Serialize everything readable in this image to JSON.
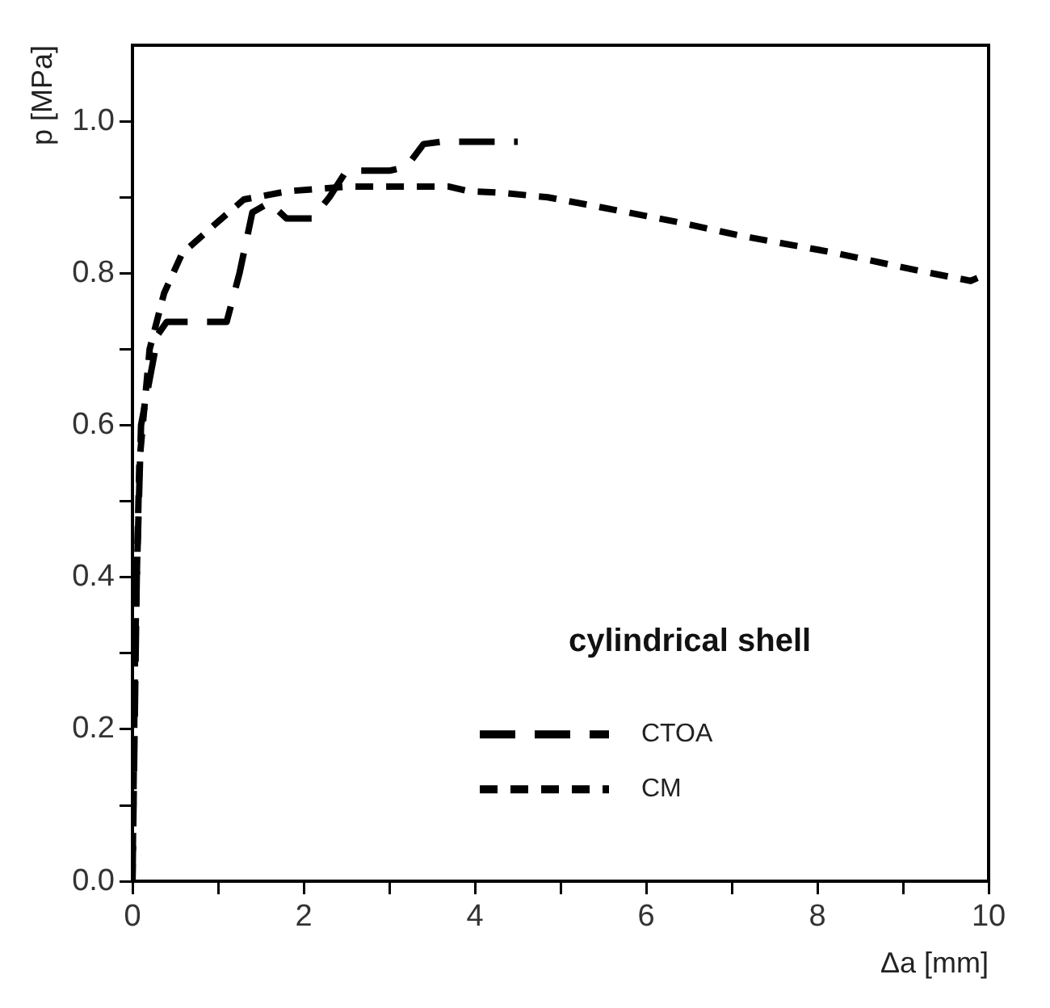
{
  "chart_data": {
    "type": "line",
    "xlabel": "Δa [mm]",
    "ylabel": "p [MPa]",
    "annotations": [
      "cylindrical shell"
    ],
    "xlim": [
      0,
      10
    ],
    "xticks": [
      0,
      {
        "value": 1,
        "label": null
      },
      2,
      {
        "value": 3,
        "label": null
      },
      4,
      {
        "value": 5,
        "label": null
      },
      6,
      {
        "value": 7,
        "label": null
      },
      8,
      {
        "value": 9,
        "label": null
      },
      10
    ],
    "ylim": [
      0,
      1.1
    ],
    "yticks": [
      "0.0",
      {
        "value": 0.1,
        "label": null
      },
      {
        "value": 0.2,
        "label": "0.2"
      },
      {
        "value": 0.3,
        "label": null
      },
      {
        "value": 0.4,
        "label": "0.4"
      },
      {
        "value": 0.5,
        "label": null
      },
      {
        "value": 0.6,
        "label": "0.6"
      },
      {
        "value": 0.7,
        "label": null
      },
      {
        "value": 0.8,
        "label": "0.8"
      },
      {
        "value": 0.9,
        "label": null
      },
      {
        "value": 1.0,
        "label": "1.0"
      }
    ],
    "grid": false,
    "legend": "bottom right",
    "marker": "none",
    "series": [
      {
        "name": "CTOA",
        "color": "#000000",
        "line_style": "dashed",
        "x": [
          0,
          0.05,
          0.1,
          0.3,
          0.4,
          1.1,
          1.25,
          1.4,
          1.6,
          1.8,
          2.1,
          2.3,
          2.5,
          3.0,
          3.2,
          3.4,
          3.6,
          4.5
        ],
        "values": [
          0,
          0.4,
          0.6,
          0.72,
          0.736,
          0.736,
          0.8,
          0.88,
          0.893,
          0.872,
          0.872,
          0.9,
          0.935,
          0.935,
          0.94,
          0.97,
          0.973,
          0.973
        ]
      },
      {
        "name": "CM",
        "color": "#000000",
        "line_style": "dotted",
        "x": [
          0,
          0.03,
          0.08,
          0.2,
          0.37,
          0.58,
          0.98,
          1.3,
          1.82,
          2.5,
          3.0,
          3.7,
          3.93,
          4.3,
          4.85,
          5.37,
          6.34,
          7.12,
          8.15,
          9.2,
          9.79,
          10
        ],
        "values": [
          0,
          0.3,
          0.55,
          0.7,
          0.774,
          0.826,
          0.866,
          0.897,
          0.908,
          0.914,
          0.914,
          0.914,
          0.908,
          0.906,
          0.9,
          0.889,
          0.868,
          0.849,
          0.828,
          0.803,
          0.79,
          0.8
        ]
      }
    ]
  }
}
